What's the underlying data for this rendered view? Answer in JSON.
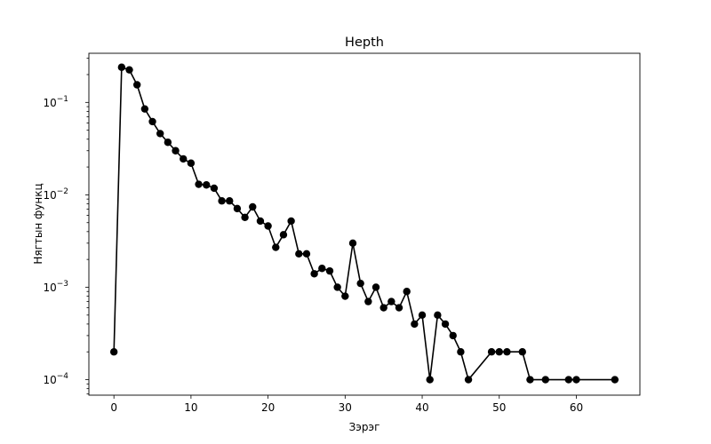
{
  "chart_data": {
    "type": "line",
    "title": "Hepth",
    "xlabel": "Зэрэг",
    "ylabel": "Нягтын функц",
    "xscale": "linear",
    "yscale": "log",
    "xlim": [
      -3.25,
      68.25
    ],
    "ylim": [
      6.8e-05,
      0.34
    ],
    "xticks": [
      0,
      10,
      20,
      30,
      40,
      50,
      60
    ],
    "yticks": [
      {
        "value": 0.0001,
        "base": "10",
        "exp": "−4"
      },
      {
        "value": 0.001,
        "base": "10",
        "exp": "−3"
      },
      {
        "value": 0.01,
        "base": "10",
        "exp": "−2"
      },
      {
        "value": 0.1,
        "base": "10",
        "exp": "−1"
      }
    ],
    "grid": false,
    "legend": "none",
    "series": [
      {
        "color": "#000000",
        "marker": "circle",
        "x": [
          0,
          1,
          2,
          3,
          4,
          5,
          6,
          7,
          8,
          9,
          10,
          11,
          12,
          13,
          14,
          15,
          16,
          17,
          18,
          19,
          20,
          21,
          22,
          23,
          24,
          25,
          26,
          27,
          28,
          29,
          30,
          31,
          32,
          33,
          34,
          35,
          36,
          37,
          38,
          39,
          40,
          41,
          42,
          43,
          44,
          45,
          46,
          49,
          50,
          51,
          53,
          54,
          56,
          59,
          60,
          65
        ],
        "y": [
          0.0002,
          0.24,
          0.225,
          0.155,
          0.085,
          0.062,
          0.046,
          0.037,
          0.03,
          0.0245,
          0.022,
          0.013,
          0.0128,
          0.0118,
          0.0086,
          0.0086,
          0.0071,
          0.0057,
          0.0074,
          0.0052,
          0.0046,
          0.0027,
          0.0037,
          0.0052,
          0.0023,
          0.0023,
          0.0014,
          0.0016,
          0.0015,
          0.001,
          0.0008,
          0.003,
          0.0011,
          0.0007,
          0.001,
          0.0006,
          0.0007,
          0.0006,
          0.0009,
          0.0004,
          0.0005,
          0.0001,
          0.0005,
          0.0004,
          0.0003,
          0.0002,
          0.0001,
          0.0002,
          0.0002,
          0.0002,
          0.0002,
          0.0001,
          0.0001,
          0.0001,
          0.0001,
          0.0001
        ]
      }
    ]
  }
}
